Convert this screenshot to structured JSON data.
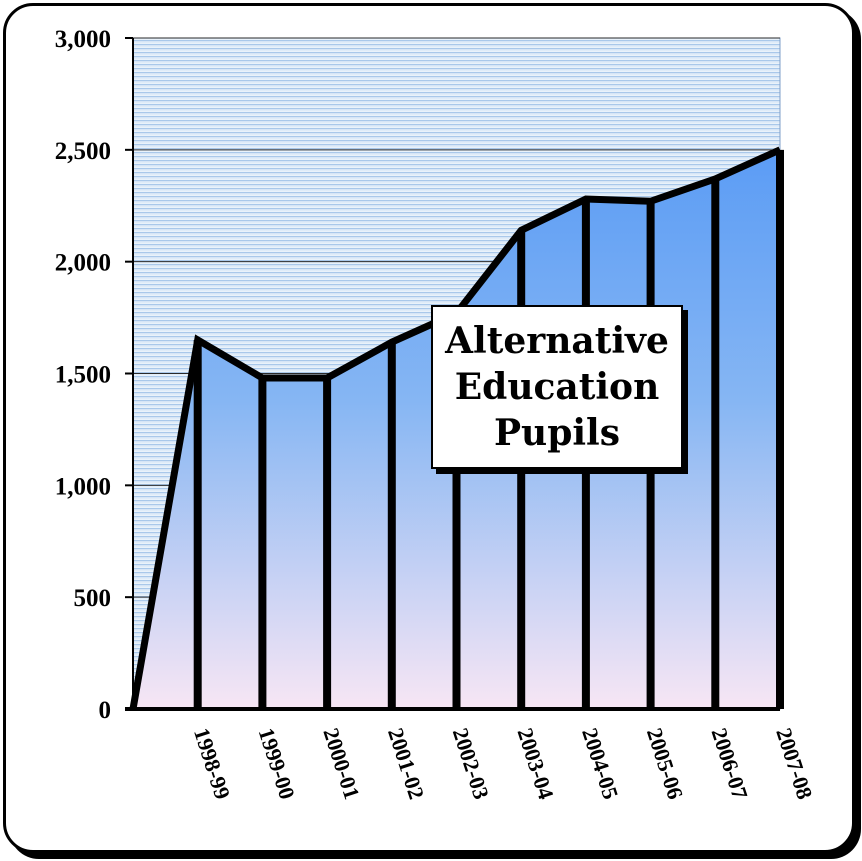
{
  "chart_data": {
    "type": "area",
    "title": "Alternative\nEducation\nPupils",
    "xlabel": "",
    "ylabel": "",
    "x": [
      "",
      "1998-99",
      "1999-00",
      "2000-01",
      "2001-02",
      "2002-03",
      "2003-04",
      "2004-05",
      "2005-06",
      "2006-07",
      "2007-08"
    ],
    "values": [
      0,
      1650,
      1480,
      1480,
      1640,
      1770,
      2140,
      2280,
      2270,
      2370,
      2500
    ],
    "ylim": [
      0,
      3000
    ],
    "yticks": [
      0,
      500,
      1000,
      1500,
      2000,
      2500,
      3000
    ],
    "ytick_labels": [
      "0",
      "500",
      "1,000",
      "1,500",
      "2,000",
      "2,500",
      "3,000"
    ],
    "grid": true,
    "colors": {
      "fill_top": "#5b9cf5",
      "fill_bottom": "#f7e6f4",
      "bg_top": "#c7dcf2",
      "bg_bottom": "#eef5fc",
      "line": "#000000"
    }
  }
}
